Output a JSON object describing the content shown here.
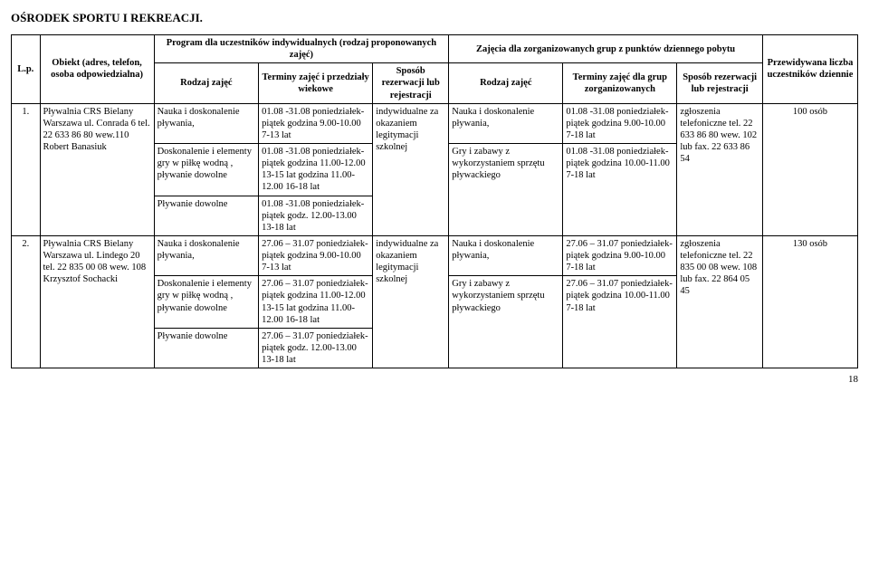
{
  "title": "OŚRODEK SPORTU I REKREACJI.",
  "page_number": "18",
  "head": {
    "lp": "L.p.",
    "obiekt": "Obiekt\n(adres, telefon, osoba odpowiedzialna)",
    "prog_ind": "Program dla uczestników indywidualnych\n(rodzaj proponowanych zajęć)",
    "rz1": "Rodzaj zajęć",
    "tz1": "Terminy zajęć i przedziały wiekowe",
    "sposob1": "Sposób rezerwacji lub rejestracji",
    "zorg": "Zajęcia dla zorganizowanych grup z punktów dziennego pobytu",
    "rz2": "Rodzaj zajęć",
    "tz2": "Terminy zajęć dla grup zorganizowanych",
    "sposob2": "Sposób rezerwacji lub rejestracji",
    "prz": "Przewidywana liczba uczestników dziennie"
  },
  "rows": [
    {
      "lp": "1.",
      "obiekt": "Pływalnia CRS Bielany Warszawa ul. Conrada 6  tel. 22 633 86 80 wew.110 Robert Banasiuk",
      "sposob1": "indywidualne za okazaniem legitymacji szkolnej",
      "sposob2": "zgłoszenia telefoniczne tel. 22 633 86 80 wew. 102 lub fax. 22 633 86 54",
      "prz": "100 osób",
      "sub": [
        {
          "rz1": "Nauka i doskonalenie pływania,",
          "tz1": "01.08 -31.08 poniedziałek-piątek godzina 9.00-10.00 7-13 lat",
          "rz2": "Nauka i doskonalenie pływania,",
          "tz2": "01.08 -31.08 poniedziałek-piątek godzina 9.00-10.00 7-18 lat"
        },
        {
          "rz1": "Doskonalenie i elementy gry w piłkę wodną , pływanie dowolne",
          "tz1": "01.08 -31.08 poniedziałek-piątek godzina 11.00-12.00 13-15 lat godzina 11.00-12.00 16-18 lat",
          "rz2": "Gry i zabawy z wykorzystaniem sprzętu pływackiego",
          "tz2": "01.08 -31.08 poniedziałek-piątek godzina 10.00-11.00 7-18 lat"
        },
        {
          "rz1": "Pływanie dowolne",
          "tz1": "01.08 -31.08 poniedziałek-piątek godz. 12.00-13.00 13-18 lat",
          "rz2": "",
          "tz2": ""
        }
      ]
    },
    {
      "lp": "2.",
      "obiekt": "Pływalnia CRS Bielany Warszawa ul. Lindego 20 tel. 22 835 00 08 wew. 108 Krzysztof Sochacki",
      "sposob1": "indywidualne za okazaniem legitymacji szkolnej",
      "sposob2": "zgłoszenia telefoniczne tel. 22 835 00 08 wew. 108 lub fax. 22 864 05 45",
      "prz": "130 osób",
      "sub": [
        {
          "rz1": "Nauka i doskonalenie pływania,",
          "tz1": "27.06 – 31.07 poniedziałek-piątek godzina 9.00-10.00 7-13 lat",
          "rz2": "Nauka i doskonalenie pływania,",
          "tz2": "27.06 – 31.07 poniedziałek-piątek godzina 9.00-10.00 7-18 lat"
        },
        {
          "rz1": "Doskonalenie i elementy gry w piłkę wodną , pływanie dowolne",
          "tz1": "27.06 – 31.07 poniedziałek-piątek godzina 11.00-12.00 13-15 lat godzina 11.00-12.00 16-18 lat",
          "rz2": "Gry i zabawy z wykorzystaniem sprzętu pływackiego",
          "tz2": "27.06 – 31.07 poniedziałek-piątek godzina 10.00-11.00 7-18 lat"
        },
        {
          "rz1": "Pływanie dowolne",
          "tz1": "27.06 – 31.07 poniedziałek-piątek godz. 12.00-13.00 13-18 lat",
          "rz2": "",
          "tz2": ""
        }
      ]
    }
  ]
}
